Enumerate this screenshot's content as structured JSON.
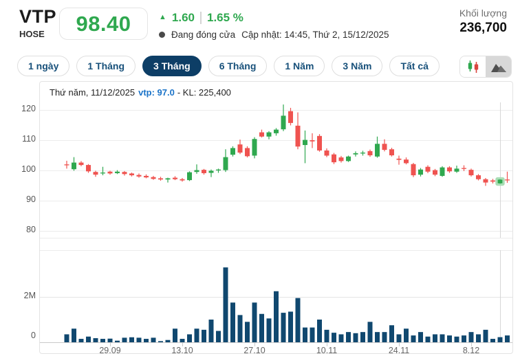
{
  "header": {
    "symbol": "VTP",
    "exchange": "HOSE",
    "price": "98.40",
    "change_arrow": "▲",
    "change_value": "1.60",
    "change_percent": "1.65 %",
    "status_dot_icon": "filled-circle",
    "status_text": "Đang đóng cửa",
    "updated_text": "Cập nhật: 14:45, Thứ 2, 15/12/2025",
    "volume_label": "Khối lượng",
    "volume_value": "236,700"
  },
  "tabs": [
    {
      "label": "1 ngày",
      "active": false
    },
    {
      "label": "1 Tháng",
      "active": false
    },
    {
      "label": "3 Tháng",
      "active": true
    },
    {
      "label": "6 Tháng",
      "active": false
    },
    {
      "label": "1 Năm",
      "active": false
    },
    {
      "label": "3 Năm",
      "active": false
    },
    {
      "label": "Tất cả",
      "active": false
    }
  ],
  "chart_toggle": {
    "options": [
      {
        "name": "candlestick-chart-icon",
        "selected": false
      },
      {
        "name": "area-chart-icon",
        "selected": true
      }
    ]
  },
  "tooltip": {
    "date_text": "Thứ năm, 11/12/2025",
    "symbol_price": "vtp: 97.0",
    "volume_text": "- KL: 225,400"
  },
  "colors": {
    "green": "#2fa84f",
    "red": "#ef5350",
    "volume_bar": "#10486f",
    "active_tab": "#0d3e66",
    "tooltip_blue": "#1a73c8",
    "gridline": "#ececec",
    "crosshair": "#d6d6d6"
  },
  "chart_data": {
    "type": "candlestick+volume-bar",
    "title": "",
    "legend": "none",
    "grid": "horizontal",
    "price_axis": {
      "ticks": [
        120,
        110,
        100,
        90,
        80
      ],
      "min": 78,
      "max": 123
    },
    "volume_axis": {
      "ticks": [
        "2M",
        "0"
      ],
      "y_rel": [
        313,
        371
      ],
      "unit": "shares",
      "max": 3500000
    },
    "x_labels": [
      "29.09",
      "13.10",
      "27.10",
      "10.11",
      "24.11",
      "8.12"
    ],
    "x_label_indices": [
      6,
      16,
      26,
      36,
      46,
      56
    ],
    "highlight_index": 60,
    "highlight_note": "hovered candle 11/12/2025 close 97.0 volume 225,400",
    "candles_format": [
      "open",
      "high",
      "low",
      "close"
    ],
    "candles": [
      [
        102.0,
        103.2,
        100.6,
        101.7
      ],
      [
        100.4,
        104.4,
        99.9,
        102.6
      ],
      [
        102.6,
        103.1,
        101.4,
        101.8
      ],
      [
        101.8,
        102.1,
        99.2,
        99.7
      ],
      [
        99.5,
        99.9,
        97.9,
        98.6
      ],
      [
        99.1,
        101.2,
        98.4,
        99.3
      ],
      [
        99.6,
        99.9,
        98.6,
        99.0
      ],
      [
        99.1,
        100.1,
        98.8,
        99.6
      ],
      [
        99.5,
        99.8,
        98.3,
        98.8
      ],
      [
        99.0,
        99.3,
        98.0,
        98.4
      ],
      [
        98.5,
        99.0,
        97.6,
        98.0
      ],
      [
        98.2,
        98.7,
        97.4,
        97.7
      ],
      [
        97.8,
        98.2,
        96.9,
        97.2
      ],
      [
        97.4,
        97.9,
        96.6,
        97.0
      ],
      [
        97.0,
        97.6,
        96.0,
        97.4
      ],
      [
        97.6,
        98.1,
        96.8,
        97.1
      ],
      [
        97.1,
        97.5,
        96.3,
        96.7
      ],
      [
        96.8,
        99.7,
        96.5,
        99.4
      ],
      [
        99.5,
        102.0,
        98.9,
        100.1
      ],
      [
        100.2,
        100.5,
        98.6,
        99.1
      ],
      [
        99.2,
        100.3,
        97.8,
        99.9
      ],
      [
        100.0,
        100.6,
        99.2,
        100.3
      ],
      [
        100.1,
        107.0,
        99.5,
        104.4
      ],
      [
        105.2,
        108.0,
        104.6,
        107.4
      ],
      [
        108.6,
        110.2,
        105.4,
        105.9
      ],
      [
        107.4,
        108.0,
        104.3,
        104.7
      ],
      [
        104.9,
        111.0,
        104.0,
        110.4
      ],
      [
        112.6,
        113.5,
        110.9,
        111.2
      ],
      [
        111.2,
        113.0,
        110.3,
        112.6
      ],
      [
        112.3,
        114.0,
        111.5,
        113.5
      ],
      [
        113.6,
        121.8,
        113.0,
        118.1
      ],
      [
        119.6,
        120.7,
        114.9,
        115.7
      ],
      [
        114.8,
        119.2,
        107.0,
        107.9
      ],
      [
        108.4,
        113.2,
        102.4,
        110.1
      ],
      [
        110.0,
        112.3,
        107.4,
        109.6
      ],
      [
        111.4,
        112.0,
        106.2,
        106.6
      ],
      [
        106.6,
        107.3,
        104.4,
        104.9
      ],
      [
        105.3,
        105.8,
        102.1,
        102.7
      ],
      [
        104.3,
        104.8,
        102.6,
        103.1
      ],
      [
        103.1,
        104.9,
        102.8,
        104.6
      ],
      [
        105.3,
        106.3,
        104.6,
        105.7
      ],
      [
        105.6,
        106.5,
        104.9,
        105.9
      ],
      [
        106.4,
        106.9,
        104.5,
        105.0
      ],
      [
        104.6,
        111.2,
        104.2,
        108.8
      ],
      [
        108.8,
        110.3,
        106.3,
        106.8
      ],
      [
        107.0,
        107.5,
        104.6,
        105.0
      ],
      [
        103.9,
        104.9,
        101.9,
        103.5
      ],
      [
        103.6,
        104.3,
        102.0,
        102.4
      ],
      [
        102.1,
        102.5,
        97.8,
        98.4
      ],
      [
        98.6,
        100.8,
        98.0,
        100.3
      ],
      [
        101.2,
        101.7,
        99.1,
        99.6
      ],
      [
        100.1,
        100.5,
        98.1,
        98.6
      ],
      [
        98.2,
        101.4,
        97.9,
        101.0
      ],
      [
        101.0,
        101.4,
        99.2,
        99.7
      ],
      [
        99.6,
        101.6,
        99.2,
        100.6
      ],
      [
        100.8,
        101.7,
        99.8,
        100.5
      ],
      [
        100.2,
        100.6,
        98.0,
        98.4
      ],
      [
        98.4,
        98.8,
        96.7,
        97.1
      ],
      [
        97.1,
        97.5,
        94.9,
        96.0
      ],
      [
        96.7,
        97.2,
        95.7,
        96.3
      ],
      [
        95.7,
        97.4,
        95.3,
        97.0
      ],
      [
        97.0,
        99.6,
        95.9,
        96.8
      ]
    ],
    "volumes_millions": [
      0.35,
      0.6,
      0.15,
      0.25,
      0.18,
      0.15,
      0.16,
      0.07,
      0.2,
      0.22,
      0.2,
      0.15,
      0.2,
      0.05,
      0.1,
      0.6,
      0.15,
      0.35,
      0.6,
      0.55,
      1.0,
      0.5,
      3.3,
      1.75,
      1.2,
      0.9,
      1.75,
      1.25,
      1.05,
      2.25,
      1.3,
      1.35,
      1.95,
      0.65,
      0.65,
      1.0,
      0.55,
      0.42,
      0.35,
      0.45,
      0.4,
      0.45,
      0.9,
      0.45,
      0.45,
      0.75,
      0.35,
      0.6,
      0.3,
      0.45,
      0.25,
      0.35,
      0.35,
      0.3,
      0.25,
      0.3,
      0.45,
      0.35,
      0.55,
      0.15,
      0.225,
      0.3
    ]
  }
}
